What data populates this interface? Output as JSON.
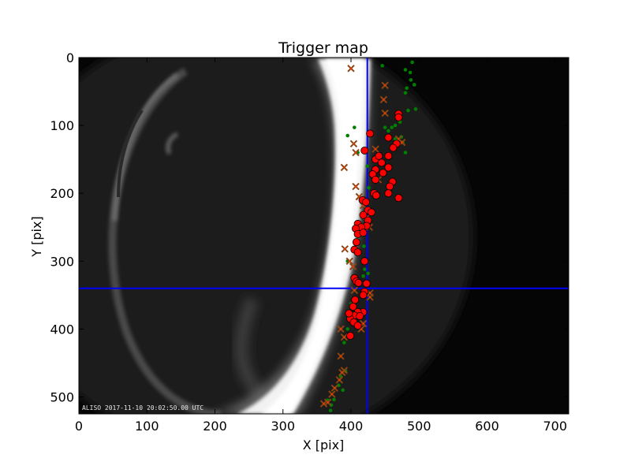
{
  "chart_data": {
    "type": "scatter",
    "title": "Trigger map",
    "xlabel": "X [pix]",
    "ylabel": "Y [pix]",
    "xlim": [
      0,
      720
    ],
    "ylim": [
      525,
      0
    ],
    "xticks": [
      0,
      100,
      200,
      300,
      400,
      500,
      600,
      700
    ],
    "yticks": [
      0,
      100,
      200,
      300,
      400,
      500
    ],
    "grid": false,
    "legend": "none",
    "image_timestamp": "ALISO 2017-11-10 20:02:50.00 UTC",
    "crosshair": {
      "x": 424,
      "y": 340,
      "color": "#0000ff"
    },
    "colors": {
      "red_marker": "#ff0000",
      "green_marker": "#008000",
      "x_marker": "#8b4513",
      "background": "#000000",
      "aurora": "#ffffff"
    },
    "series": [
      {
        "marker": "circle-red",
        "points": [
          [
            470,
            83
          ],
          [
            470,
            88
          ],
          [
            428,
            112
          ],
          [
            420,
            137
          ],
          [
            467,
            127
          ],
          [
            462,
            133
          ],
          [
            455,
            118
          ],
          [
            436,
            150
          ],
          [
            441,
            145
          ],
          [
            445,
            155
          ],
          [
            436,
            165
          ],
          [
            432,
            172
          ],
          [
            455,
            145
          ],
          [
            455,
            162
          ],
          [
            447,
            170
          ],
          [
            436,
            180
          ],
          [
            461,
            183
          ],
          [
            457,
            190
          ],
          [
            455,
            200
          ],
          [
            470,
            207
          ],
          [
            434,
            200
          ],
          [
            437,
            203
          ],
          [
            417,
            210
          ],
          [
            422,
            213
          ],
          [
            425,
            225
          ],
          [
            430,
            228
          ],
          [
            418,
            232
          ],
          [
            425,
            240
          ],
          [
            423,
            248
          ],
          [
            410,
            245
          ],
          [
            415,
            250
          ],
          [
            407,
            252
          ],
          [
            410,
            260
          ],
          [
            418,
            258
          ],
          [
            408,
            272
          ],
          [
            405,
            283
          ],
          [
            410,
            287
          ],
          [
            420,
            300
          ],
          [
            405,
            325
          ],
          [
            408,
            330
          ],
          [
            411,
            332
          ],
          [
            423,
            333
          ],
          [
            420,
            345
          ],
          [
            418,
            350
          ],
          [
            406,
            357
          ],
          [
            403,
            367
          ],
          [
            418,
            375
          ],
          [
            410,
            375
          ],
          [
            405,
            380
          ],
          [
            413,
            381
          ],
          [
            399,
            385
          ],
          [
            397,
            377
          ],
          [
            404,
            390
          ],
          [
            410,
            395
          ],
          [
            399,
            410
          ]
        ]
      },
      {
        "marker": "dot-green",
        "points": [
          [
            446,
            12
          ],
          [
            490,
            7
          ],
          [
            480,
            18
          ],
          [
            487,
            22
          ],
          [
            488,
            33
          ],
          [
            493,
            40
          ],
          [
            482,
            45
          ],
          [
            480,
            52
          ],
          [
            484,
            78
          ],
          [
            495,
            76
          ],
          [
            472,
            95
          ],
          [
            465,
            100
          ],
          [
            460,
            103
          ],
          [
            450,
            103
          ],
          [
            455,
            108
          ],
          [
            465,
            120
          ],
          [
            474,
            117
          ],
          [
            476,
            125
          ],
          [
            480,
            140
          ],
          [
            405,
            103
          ],
          [
            395,
            115
          ],
          [
            410,
            140
          ],
          [
            424,
            160
          ],
          [
            426,
            192
          ],
          [
            425,
            215
          ],
          [
            428,
            225
          ],
          [
            419,
            278
          ],
          [
            395,
            300
          ],
          [
            420,
            312
          ],
          [
            425,
            318
          ],
          [
            418,
            322
          ],
          [
            424,
            345
          ],
          [
            400,
            363
          ],
          [
            405,
            368
          ],
          [
            395,
            400
          ],
          [
            397,
            410
          ],
          [
            390,
            420
          ],
          [
            392,
            462
          ],
          [
            385,
            470
          ],
          [
            382,
            483
          ],
          [
            388,
            490
          ],
          [
            375,
            504
          ],
          [
            371,
            512
          ],
          [
            366,
            505
          ],
          [
            370,
            520
          ]
        ]
      },
      {
        "marker": "x-brown",
        "points": [
          [
            400,
            16
          ],
          [
            450,
            41
          ],
          [
            448,
            62
          ],
          [
            450,
            82
          ],
          [
            470,
            120
          ],
          [
            436,
            135
          ],
          [
            475,
            125
          ],
          [
            404,
            127
          ],
          [
            407,
            140
          ],
          [
            407,
            190
          ],
          [
            390,
            162
          ],
          [
            440,
            180
          ],
          [
            412,
            205
          ],
          [
            418,
            218
          ],
          [
            424,
            235
          ],
          [
            427,
            250
          ],
          [
            391,
            282
          ],
          [
            398,
            300
          ],
          [
            403,
            308
          ],
          [
            405,
            343
          ],
          [
            428,
            347
          ],
          [
            428,
            353
          ],
          [
            418,
            392
          ],
          [
            415,
            400
          ],
          [
            385,
            400
          ],
          [
            390,
            412
          ],
          [
            385,
            440
          ],
          [
            390,
            461
          ],
          [
            387,
            464
          ],
          [
            383,
            475
          ],
          [
            376,
            487
          ],
          [
            372,
            496
          ],
          [
            366,
            508
          ],
          [
            360,
            510
          ]
        ]
      }
    ]
  }
}
